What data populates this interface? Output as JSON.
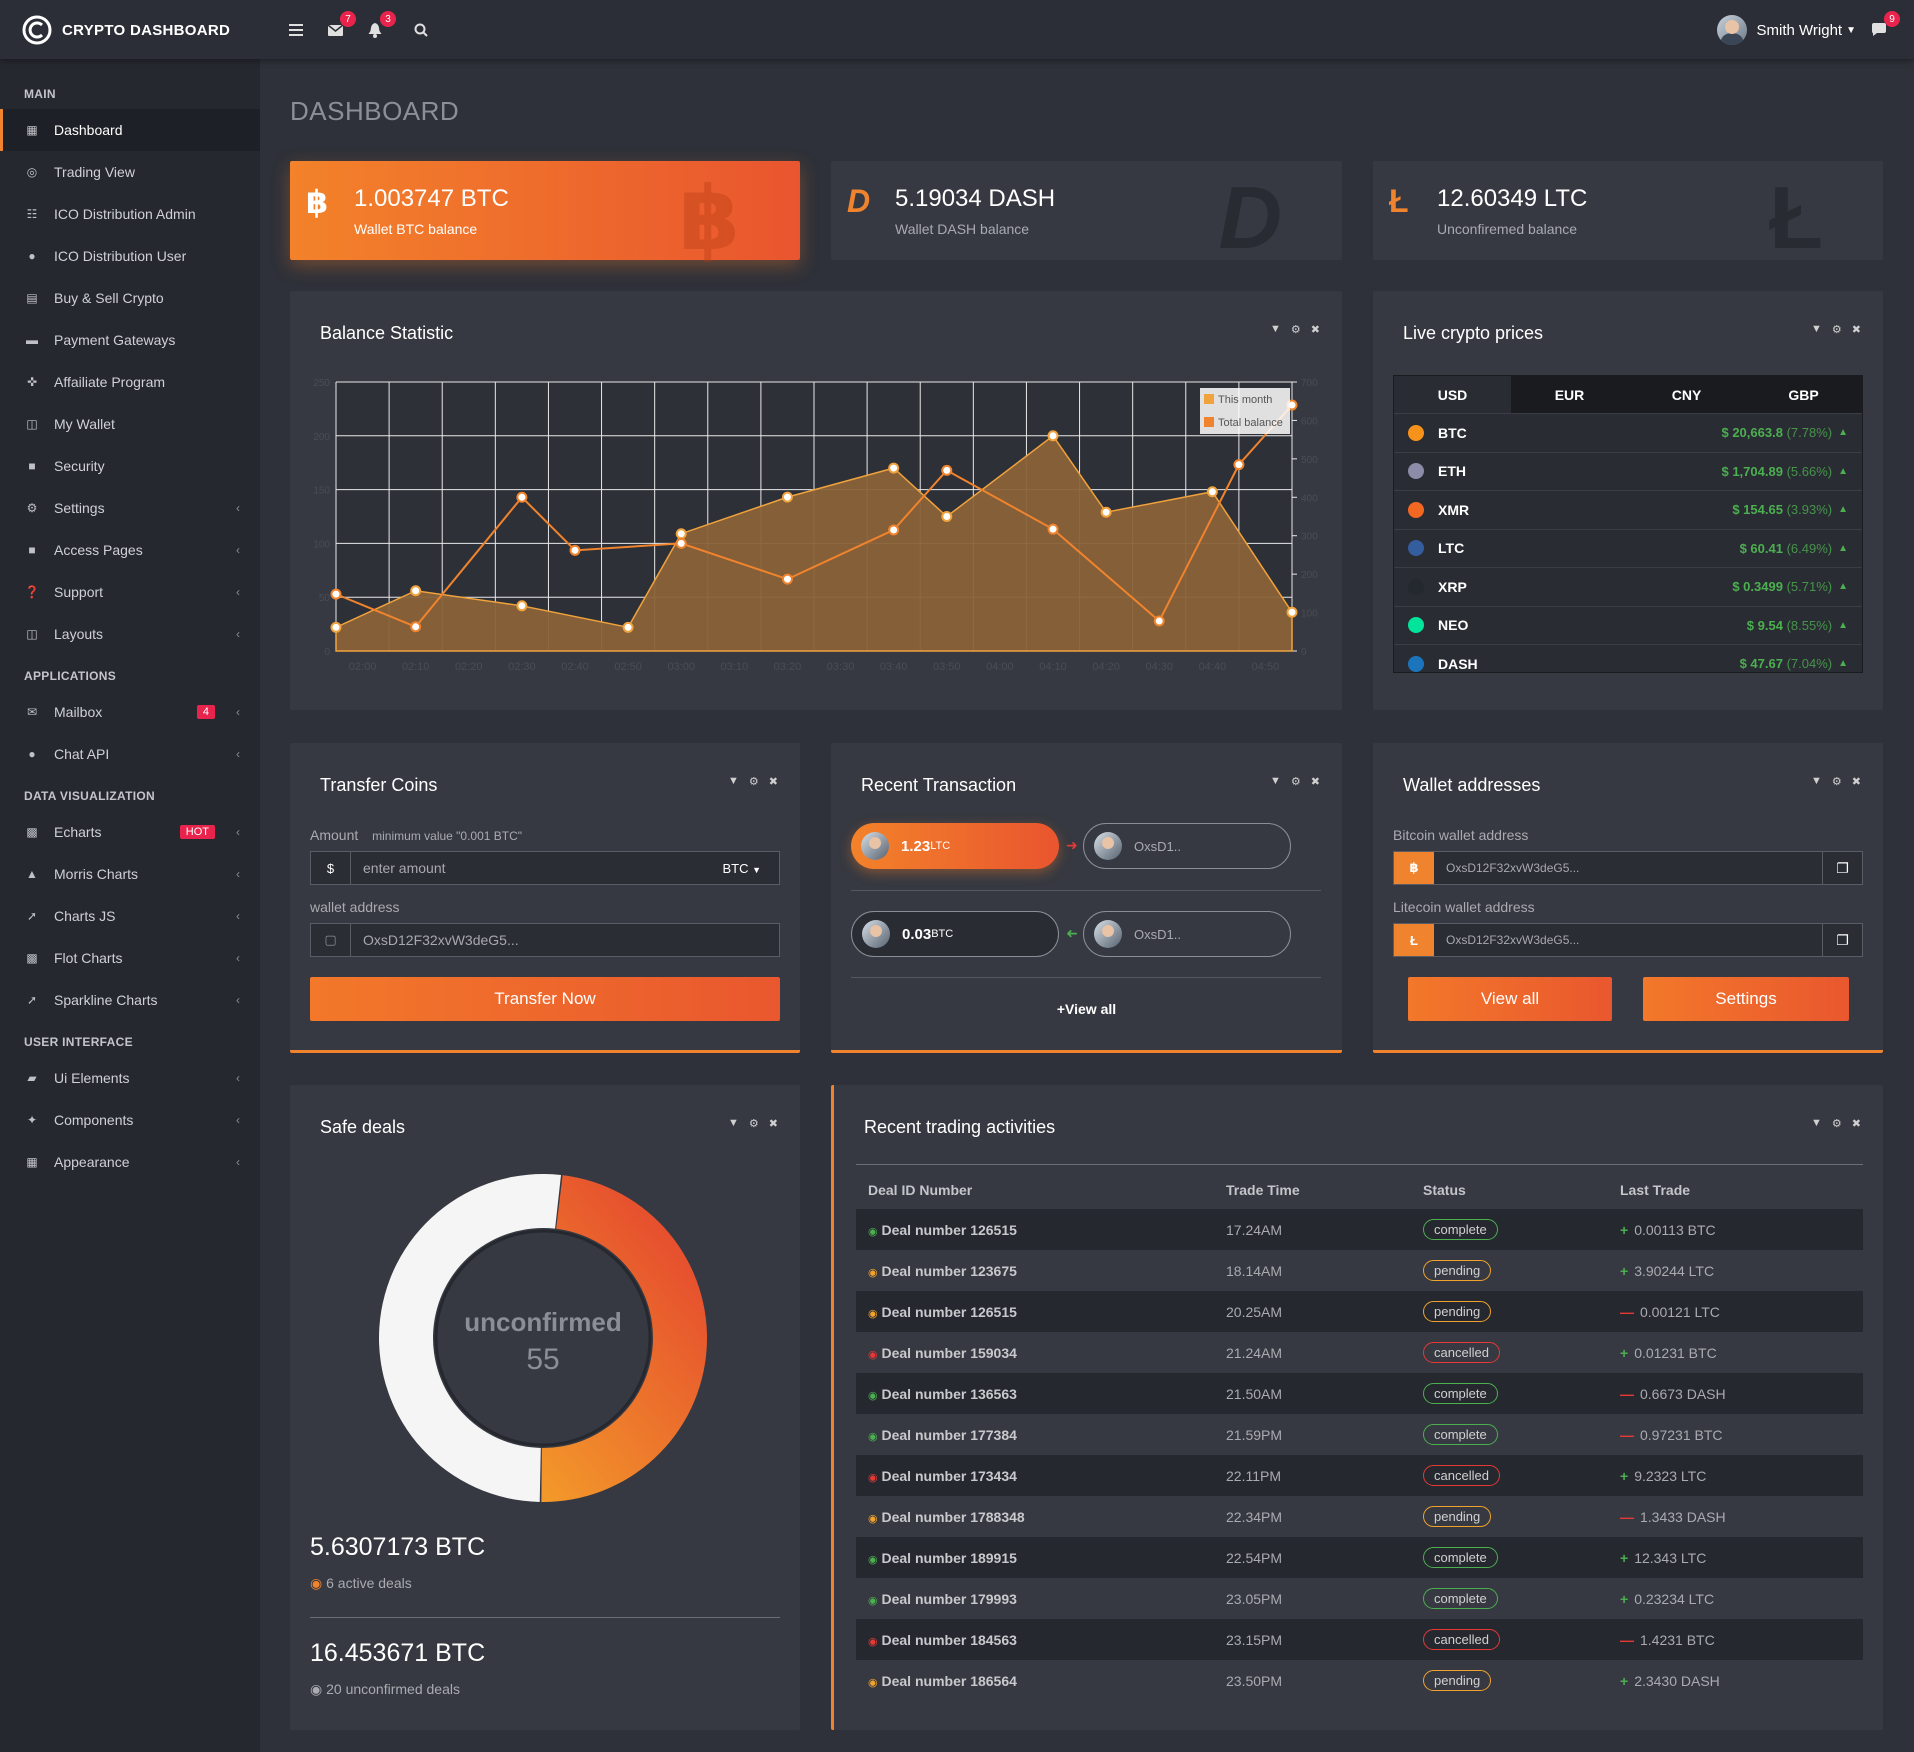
{
  "app": {
    "brand": "CRYPTO DASHBOARD"
  },
  "topbar": {
    "mail_count": "7",
    "bell_count": "3",
    "user_name": "Smith Wright",
    "chat_count": "9"
  },
  "sidebar": {
    "sections": [
      {
        "title": "MAIN",
        "items": [
          {
            "label": "Dashboard",
            "icon": "dashboard-icon",
            "active": true
          },
          {
            "label": "Trading View",
            "icon": "target-icon"
          },
          {
            "label": "ICO Distribution Admin",
            "icon": "sitemap-icon"
          },
          {
            "label": "ICO Distribution User",
            "icon": "user-icon"
          },
          {
            "label": "Buy & Sell Crypto",
            "icon": "database-icon"
          },
          {
            "label": "Payment Gateways",
            "icon": "credit-card-icon"
          },
          {
            "label": "Affailiate Program",
            "icon": "crosshair-icon"
          },
          {
            "label": "My Wallet",
            "icon": "wallet-icon"
          },
          {
            "label": "Security",
            "icon": "lock-icon"
          },
          {
            "label": "Settings",
            "icon": "gear-icon",
            "chevron": true
          },
          {
            "label": "Access Pages",
            "icon": "lock-icon",
            "chevron": true
          },
          {
            "label": "Support",
            "icon": "question-icon",
            "chevron": true
          },
          {
            "label": "Layouts",
            "icon": "columns-icon",
            "chevron": true
          }
        ]
      },
      {
        "title": "APPLICATIONS",
        "items": [
          {
            "label": "Mailbox",
            "icon": "envelope-icon",
            "chevron": true,
            "badge": "4"
          },
          {
            "label": "Chat API",
            "icon": "chat-icon",
            "chevron": true
          }
        ]
      },
      {
        "title": "DATA VISUALIZATION",
        "items": [
          {
            "label": "Echarts",
            "icon": "bar-chart-icon",
            "chevron": true,
            "badge": "HOT"
          },
          {
            "label": "Morris Charts",
            "icon": "area-chart-icon",
            "chevron": true
          },
          {
            "label": "Charts JS",
            "icon": "line-chart-icon",
            "chevron": true
          },
          {
            "label": "Flot Charts",
            "icon": "bar-chart-icon",
            "chevron": true
          },
          {
            "label": "Sparkline Charts",
            "icon": "line-chart-icon",
            "chevron": true
          }
        ]
      },
      {
        "title": "USER INTERFACE",
        "items": [
          {
            "label": "Ui Elements",
            "icon": "folder-icon",
            "chevron": true
          },
          {
            "label": "Components",
            "icon": "puzzle-icon",
            "chevron": true
          },
          {
            "label": "Appearance",
            "icon": "grid-icon",
            "chevron": true
          }
        ]
      }
    ]
  },
  "page": {
    "title": "DASHBOARD"
  },
  "stats": [
    {
      "value": "1.003747 BTC",
      "label": "Wallet BTC balance",
      "icon": "bitcoin-icon"
    },
    {
      "value": "5.19034 DASH",
      "label": "Wallet DASH balance",
      "icon": "dash-icon"
    },
    {
      "value": "12.60349 LTC",
      "label": "Unconfiremed balance",
      "icon": "litecoin-icon"
    }
  ],
  "balance": {
    "title": "Balance Statistic"
  },
  "chart_data": {
    "type": "line",
    "x": [
      "02:00",
      "02:10",
      "02:20",
      "02:30",
      "02:40",
      "02:50",
      "03:00",
      "03:10",
      "03:20",
      "03:30",
      "03:40",
      "03:50",
      "04:00",
      "04:10",
      "04:20",
      "04:30",
      "04:40",
      "04:50"
    ],
    "xlim": [
      "01:55",
      "04:55"
    ],
    "ylim": [
      0,
      250
    ],
    "yticks": [
      0,
      50,
      100,
      150,
      200,
      250
    ],
    "y2lim": [
      0,
      700
    ],
    "y2ticks": [
      0,
      100,
      200,
      300,
      400,
      500,
      600,
      700
    ],
    "series": [
      {
        "name": "This month",
        "axis": "left",
        "style": "area",
        "color": "#f0a23c",
        "x": [
          "01:55",
          "02:10",
          "02:30",
          "02:50",
          "03:00",
          "03:20",
          "03:40",
          "03:50",
          "04:10",
          "04:20",
          "04:40",
          "04:55"
        ],
        "values": [
          22,
          56,
          42,
          22,
          109,
          143,
          170,
          125,
          200,
          129,
          148,
          36
        ]
      },
      {
        "name": "Total balance",
        "axis": "right",
        "style": "line",
        "color": "#f0832d",
        "x": [
          "01:55",
          "02:10",
          "02:30",
          "02:40",
          "03:00",
          "03:20",
          "03:40",
          "03:50",
          "04:10",
          "04:30",
          "04:45",
          "04:55"
        ],
        "values": [
          148,
          63,
          400,
          262,
          280,
          187,
          315,
          470,
          317,
          78,
          485,
          640
        ]
      }
    ],
    "legend": "top-right",
    "grid": true
  },
  "prices": {
    "title": "Live crypto prices",
    "tabs": [
      "USD",
      "EUR",
      "CNY",
      "GBP"
    ],
    "rows": [
      {
        "sym": "BTC",
        "price": "$ 20,663.8",
        "change": "(7.78%)",
        "icon": "bitcoin-icon",
        "color": "#f7931a"
      },
      {
        "sym": "ETH",
        "price": "$ 1,704.89",
        "change": "(5.66%)",
        "icon": "ethereum-icon",
        "color": "#8c8ca8"
      },
      {
        "sym": "XMR",
        "price": "$ 154.65",
        "change": "(3.93%)",
        "icon": "monero-icon",
        "color": "#f26822"
      },
      {
        "sym": "LTC",
        "price": "$ 60.41",
        "change": "(6.49%)",
        "icon": "litecoin-icon",
        "color": "#345d9d"
      },
      {
        "sym": "XRP",
        "price": "$ 0.3499",
        "change": "(5.71%)",
        "icon": "ripple-icon",
        "color": "#23292f"
      },
      {
        "sym": "NEO",
        "price": "$ 9.54",
        "change": "(8.55%)",
        "icon": "neo-icon",
        "color": "#00e599"
      },
      {
        "sym": "DASH",
        "price": "$ 47.67",
        "change": "(7.04%)",
        "icon": "dash-icon",
        "color": "#1c75bc"
      }
    ]
  },
  "transfer": {
    "title": "Transfer Coins",
    "amount_label": "Amount",
    "amount_hint": "minimum value \"0.001 BTC\"",
    "amount_prefix": "$",
    "amount_placeholder": "enter amount",
    "currency": "BTC",
    "wallet_label": "wallet address",
    "wallet_value": "OxsD12F32xvW3deG5...",
    "button": "Transfer Now"
  },
  "recent": {
    "title": "Recent Transaction",
    "tx": [
      {
        "amount": "1.23",
        "unit": "LTC",
        "to": "OxsD1.."
      },
      {
        "amount": "0.03",
        "unit": "BTC",
        "to": "OxsD1.."
      }
    ],
    "view_all": "+View all"
  },
  "wallets": {
    "title": "Wallet addresses",
    "btc_label": "Bitcoin wallet address",
    "btc_value": "OxsD12F32xvW3deG5...",
    "ltc_label": "Litecoin wallet address",
    "ltc_value": "OxsD12F32xvW3deG5...",
    "view_all": "View all",
    "settings": "Settings"
  },
  "safe": {
    "title": "Safe deals",
    "donut_label": "unconfirmed",
    "donut_value": "55",
    "donut_fraction": 0.5,
    "amount1": "5.6307173 BTC",
    "sub1": "6 active deals",
    "amount2": "16.453671 BTC",
    "sub2": "20 unconfirmed deals"
  },
  "trading": {
    "title": "Recent trading activities",
    "columns": [
      "Deal ID Number",
      "Trade Time",
      "Status",
      "Last Trade"
    ],
    "rows": [
      {
        "deal": "Deal number 126515",
        "time": "17.24AM",
        "status": "complete",
        "dir": "+",
        "trade": "0.00113 BTC"
      },
      {
        "deal": "Deal number 123675",
        "time": "18.14AM",
        "status": "pending",
        "dir": "+",
        "trade": "3.90244 LTC"
      },
      {
        "deal": "Deal number 126515",
        "time": "20.25AM",
        "status": "pending",
        "dir": "-",
        "trade": "0.00121 LTC"
      },
      {
        "deal": "Deal number 159034",
        "time": "21.24AM",
        "status": "cancelled",
        "dir": "+",
        "trade": "0.01231 BTC"
      },
      {
        "deal": "Deal number 136563",
        "time": "21.50AM",
        "status": "complete",
        "dir": "-",
        "trade": "0.6673 DASH"
      },
      {
        "deal": "Deal number 177384",
        "time": "21.59PM",
        "status": "complete",
        "dir": "-",
        "trade": "0.97231 BTC"
      },
      {
        "deal": "Deal number 173434",
        "time": "22.11PM",
        "status": "cancelled",
        "dir": "+",
        "trade": "9.2323 LTC"
      },
      {
        "deal": "Deal number 1788348",
        "time": "22.34PM",
        "status": "pending",
        "dir": "-",
        "trade": "1.3433 DASH"
      },
      {
        "deal": "Deal number 189915",
        "time": "22.54PM",
        "status": "complete",
        "dir": "+",
        "trade": "12.343 LTC"
      },
      {
        "deal": "Deal number 179993",
        "time": "23.05PM",
        "status": "complete",
        "dir": "+",
        "trade": "0.23234 LTC"
      },
      {
        "deal": "Deal number 184563",
        "time": "23.15PM",
        "status": "cancelled",
        "dir": "-",
        "trade": "1.4231 BTC"
      },
      {
        "deal": "Deal number 186564",
        "time": "23.50PM",
        "status": "pending",
        "dir": "+",
        "trade": "2.3430 DASH"
      }
    ]
  },
  "colors": {
    "accent": "#f0832d",
    "up": "#4caf50",
    "down": "#e53935"
  }
}
